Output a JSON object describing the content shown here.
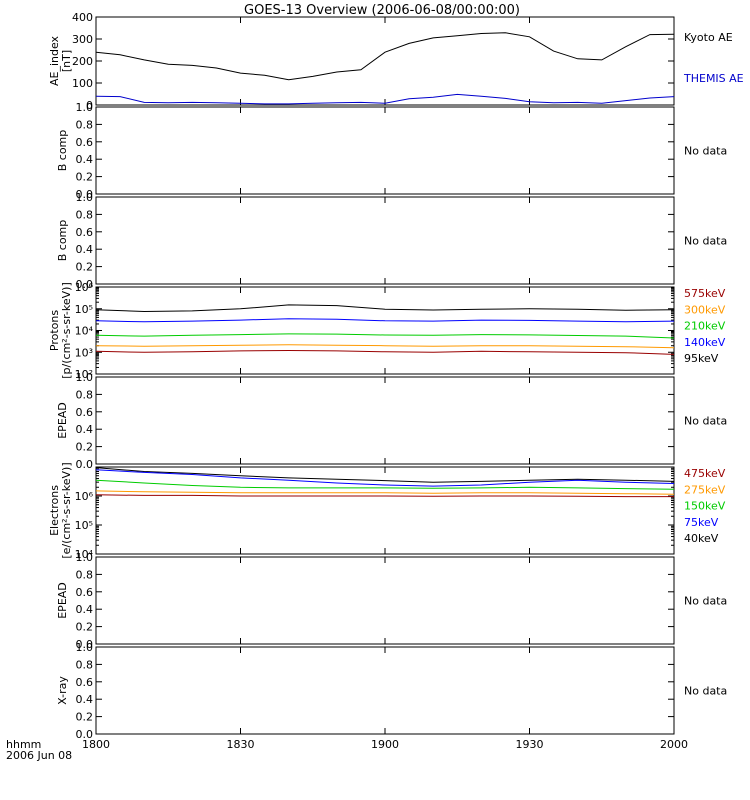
{
  "title": "GOES-13 Overview (2006-06-08/00:00:00)",
  "time_axis": {
    "ticks": [
      "1800",
      "1830",
      "1900",
      "1930",
      "2000"
    ],
    "corner_label_1": "hhmm",
    "corner_label_2": "2006 Jun 08"
  },
  "chart_data": [
    {
      "type": "line",
      "panel": "ae",
      "ylabel_1": "AE_index",
      "ylabel_2": "[nT]",
      "ylim": [
        0,
        400
      ],
      "ticks": [
        "0",
        "100",
        "200",
        "300",
        "400"
      ],
      "x_unit": "minutes after 18:00 UT",
      "x": [
        0,
        5,
        10,
        15,
        20,
        25,
        30,
        35,
        40,
        45,
        50,
        55,
        60,
        65,
        70,
        75,
        80,
        85,
        90,
        95,
        100,
        105,
        110,
        115,
        120
      ],
      "series": [
        {
          "name": "Kyoto AE",
          "color": "#000000",
          "values": [
            240,
            228,
            205,
            185,
            180,
            168,
            145,
            135,
            115,
            130,
            150,
            160,
            240,
            280,
            305,
            315,
            325,
            328,
            310,
            245,
            210,
            205,
            265,
            320,
            322
          ]
        },
        {
          "name": "THEMIS AE",
          "color": "#0000cc",
          "values": [
            40,
            38,
            12,
            10,
            12,
            10,
            8,
            5,
            5,
            8,
            10,
            12,
            8,
            28,
            35,
            48,
            40,
            30,
            15,
            10,
            12,
            8,
            20,
            32,
            38
          ]
        }
      ],
      "legend": [
        "Kyoto AE",
        "THEMIS AE"
      ]
    },
    {
      "type": "line",
      "panel": "bcomp1",
      "ylabel_1": "B comp",
      "ylim": [
        0,
        1
      ],
      "ticks": [
        "0.0",
        "0.2",
        "0.4",
        "0.6",
        "0.8",
        "1.0"
      ],
      "series": [],
      "status": "No data"
    },
    {
      "type": "line",
      "panel": "bcomp2",
      "ylabel_1": "B comp",
      "ylim": [
        0,
        1
      ],
      "ticks": [
        "0.0",
        "0.2",
        "0.4",
        "0.6",
        "0.8",
        "1.0"
      ],
      "series": [],
      "status": "No data"
    },
    {
      "type": "line",
      "panel": "protons",
      "ylabel_1": "Protons",
      "ylabel_2": "[p/(cm²-s-sr-keV)]",
      "yscale": "log",
      "ylim": [
        100,
        1000000
      ],
      "ticks": [
        "10²",
        "10³",
        "10⁴",
        "10⁵",
        "10⁶"
      ],
      "x_unit": "minutes after 18:00 UT",
      "x": [
        0,
        10,
        20,
        30,
        40,
        50,
        60,
        70,
        80,
        90,
        100,
        110,
        120
      ],
      "series": [
        {
          "name": "95keV",
          "color": "#000000",
          "values": [
            90000,
            75000,
            80000,
            100000,
            150000,
            140000,
            95000,
            88000,
            95000,
            100000,
            95000,
            85000,
            90000
          ]
        },
        {
          "name": "140keV",
          "color": "#0000ff",
          "values": [
            28000,
            25000,
            27000,
            30000,
            35000,
            33000,
            28000,
            27000,
            30000,
            29000,
            27000,
            25000,
            27000
          ]
        },
        {
          "name": "210keV",
          "color": "#00cc00",
          "values": [
            6000,
            5500,
            6000,
            6500,
            7000,
            6800,
            6200,
            6000,
            6500,
            6300,
            5900,
            5500,
            4500
          ]
        },
        {
          "name": "300keV",
          "color": "#ff9900",
          "values": [
            2000,
            1900,
            2000,
            2100,
            2200,
            2100,
            2000,
            1900,
            2000,
            2000,
            1900,
            1800,
            1600
          ]
        },
        {
          "name": "575keV",
          "color": "#990000",
          "values": [
            1100,
            1000,
            1050,
            1150,
            1200,
            1150,
            1050,
            1000,
            1100,
            1050,
            1000,
            950,
            800
          ]
        }
      ],
      "legend": [
        "575keV",
        "300keV",
        "210keV",
        "140keV",
        "95keV"
      ]
    },
    {
      "type": "line",
      "panel": "epead1",
      "ylabel_1": "EPEAD",
      "ylim": [
        0,
        1
      ],
      "ticks": [
        "0.0",
        "0.2",
        "0.4",
        "0.6",
        "0.8",
        "1.0"
      ],
      "series": [],
      "status": "No data"
    },
    {
      "type": "line",
      "panel": "electrons",
      "ylabel_1": "Electrons",
      "ylabel_2": "[e/(cm²-s-sr-keV)]",
      "yscale": "log",
      "ylim": [
        10000,
        10000000
      ],
      "ticks": [
        "10⁴",
        "10⁵",
        "10⁶"
      ],
      "x_unit": "minutes after 18:00 UT",
      "x": [
        0,
        10,
        20,
        30,
        40,
        50,
        60,
        70,
        80,
        90,
        100,
        110,
        120
      ],
      "series": [
        {
          "name": "40keV",
          "color": "#000000",
          "values": [
            9500000,
            7000000,
            6000000,
            5000000,
            4200000,
            3800000,
            3400000,
            3000000,
            3200000,
            3500000,
            3800000,
            3500000,
            3200000
          ]
        },
        {
          "name": "75keV",
          "color": "#0000ff",
          "values": [
            8000000,
            6500000,
            5500000,
            4200000,
            3500000,
            2800000,
            2400000,
            2200000,
            2400000,
            3000000,
            3500000,
            3000000,
            2700000
          ]
        },
        {
          "name": "150keV",
          "color": "#00cc00",
          "values": [
            3500000,
            2800000,
            2300000,
            2000000,
            1900000,
            1900000,
            1900000,
            1850000,
            1900000,
            2000000,
            1900000,
            1800000,
            1700000
          ]
        },
        {
          "name": "275keV",
          "color": "#ff9900",
          "values": [
            1500000,
            1400000,
            1350000,
            1300000,
            1300000,
            1300000,
            1300000,
            1250000,
            1300000,
            1300000,
            1250000,
            1200000,
            1150000
          ]
        },
        {
          "name": "475keV",
          "color": "#990000",
          "values": [
            1100000,
            1050000,
            1050000,
            1000000,
            1000000,
            1000000,
            1000000,
            980000,
            1000000,
            1000000,
            980000,
            950000,
            950000
          ]
        }
      ],
      "legend": [
        "475keV",
        "275keV",
        "150keV",
        "75keV",
        "40keV"
      ]
    },
    {
      "type": "line",
      "panel": "epead2",
      "ylabel_1": "EPEAD",
      "ylim": [
        0,
        1
      ],
      "ticks": [
        "0.0",
        "0.2",
        "0.4",
        "0.6",
        "0.8",
        "1.0"
      ],
      "series": [],
      "status": "No data"
    },
    {
      "type": "line",
      "panel": "xray",
      "ylabel_1": "X-ray",
      "ylim": [
        0,
        1
      ],
      "ticks": [
        "0.0",
        "0.2",
        "0.4",
        "0.6",
        "0.8",
        "1.0"
      ],
      "series": [],
      "status": "No data"
    }
  ]
}
